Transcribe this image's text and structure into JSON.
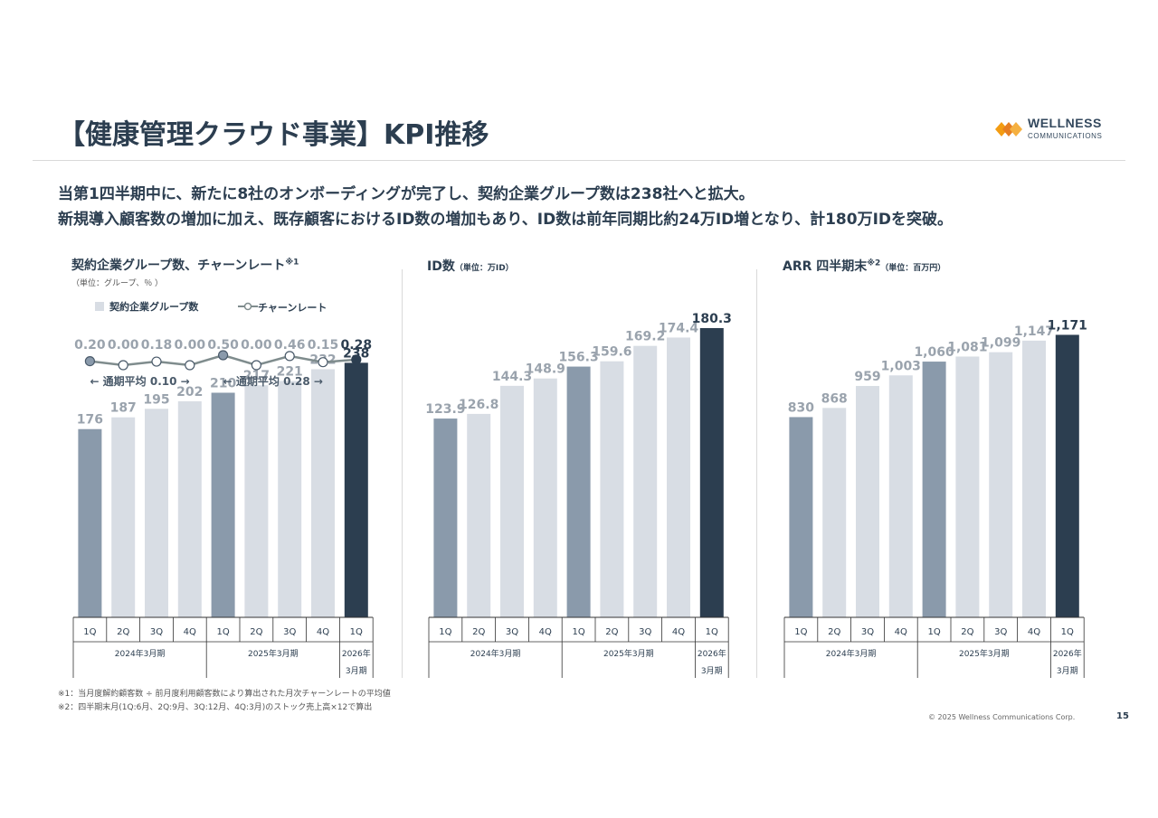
{
  "title": "【健康管理クラウド事業】KPI推移",
  "logo": {
    "line1": "WELLNESS",
    "line2": "COMMUNICATIONS"
  },
  "lead": [
    "当第1四半期中に、新たに8社のオンボーディングが完了し、契約企業グループ数は238社へと拡大。",
    "新規導入顧客数の増加に加え、既存顧客におけるID数の増加もあり、ID数は前年同期比約24万ID増となり、計180万IDを突破。"
  ],
  "colors": {
    "past": "#8a9aab",
    "mid": "#d8dde4",
    "current": "#2c3e50",
    "line": "#7f8c8d"
  },
  "chart_data": [
    {
      "type": "bar",
      "title": "契約企業グループ数、チャーンレート",
      "title_note": "※1",
      "unit": "（単位：グループ、％ ）",
      "legend": [
        "契約企業グループ数",
        "チャーンレート"
      ],
      "categories": [
        "1Q",
        "2Q",
        "3Q",
        "4Q",
        "1Q",
        "2Q",
        "3Q",
        "4Q",
        "1Q"
      ],
      "periods": [
        {
          "label": "2024年3月期",
          "span": 4
        },
        {
          "label": "2025年3月期",
          "span": 4
        },
        {
          "label": "2026年\n3月期",
          "span": 1
        }
      ],
      "values": [
        176,
        187,
        195,
        202,
        210,
        217,
        221,
        232,
        238
      ],
      "labels": [
        "176",
        "187",
        "195",
        "202",
        "210",
        "217",
        "221",
        "232",
        "238"
      ],
      "ylim": [
        0,
        300
      ],
      "churn": {
        "values": [
          0.2,
          0.0,
          0.18,
          0.0,
          0.5,
          0.0,
          0.46,
          0.15,
          0.28
        ],
        "labels": [
          "0.20",
          "0.00",
          "0.18",
          "0.00",
          "0.50",
          "0.00",
          "0.46",
          "0.15",
          "0.28"
        ],
        "avg": [
          {
            "label": "通期平均 0.10"
          },
          {
            "label": "通期平均 0.28"
          }
        ]
      }
    },
    {
      "type": "bar",
      "title": "ID数",
      "unit": "（単位：万ID）",
      "categories": [
        "1Q",
        "2Q",
        "3Q",
        "4Q",
        "1Q",
        "2Q",
        "3Q",
        "4Q",
        "1Q"
      ],
      "periods": [
        {
          "label": "2024年3月期",
          "span": 4
        },
        {
          "label": "2025年3月期",
          "span": 4
        },
        {
          "label": "2026年\n3月期",
          "span": 1
        }
      ],
      "values": [
        123.9,
        126.8,
        144.3,
        148.9,
        156.3,
        159.6,
        169.2,
        174.4,
        180.3
      ],
      "labels": [
        "123.9",
        "126.8",
        "144.3",
        "148.9",
        "156.3",
        "159.6",
        "169.2",
        "174.4",
        "180.3"
      ],
      "ylim": [
        0,
        200
      ]
    },
    {
      "type": "bar",
      "title": "ARR 四半期末",
      "title_note": "※2",
      "unit": "（単位：百万円）",
      "categories": [
        "1Q",
        "2Q",
        "3Q",
        "4Q",
        "1Q",
        "2Q",
        "3Q",
        "4Q",
        "1Q"
      ],
      "periods": [
        {
          "label": "2024年3月期",
          "span": 4
        },
        {
          "label": "2025年3月期",
          "span": 4
        },
        {
          "label": "2026年\n3月期",
          "span": 1
        }
      ],
      "values": [
        830,
        868,
        959,
        1003,
        1060,
        1081,
        1099,
        1147,
        1171
      ],
      "labels": [
        "830",
        "868",
        "959",
        "1,003",
        "1,060",
        "1,081",
        "1,099",
        "1,147",
        "1,171"
      ],
      "ylim": [
        0,
        1330
      ]
    }
  ],
  "footnotes": [
    "※1：当月度解約顧客数 ÷ 前月度利用顧客数により算出された月次チャーンレートの平均値",
    "※2：四半期末月(1Q:6月、2Q:9月、3Q:12月、4Q:3月)のストック売上高×12で算出"
  ],
  "copyright": "© 2025 Wellness Communications Corp.",
  "page_number": "15"
}
